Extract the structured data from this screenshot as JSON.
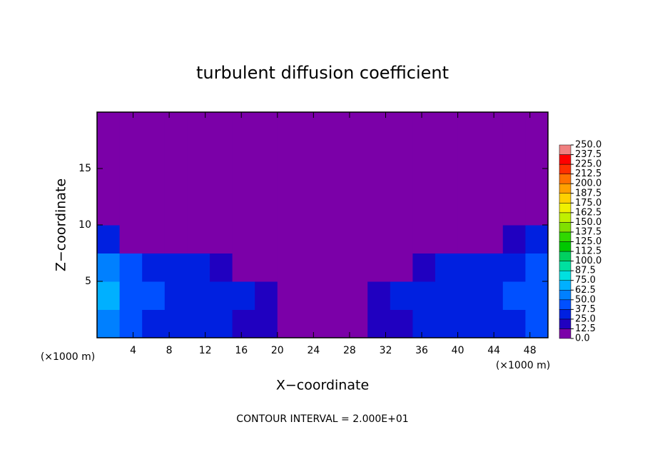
{
  "chart_data": {
    "type": "heatmap",
    "title": "turbulent diffusion coefficient",
    "xlabel": "X−coordinate",
    "ylabel": "Z−coordinate",
    "x_unit_left": "(×1000 m)",
    "x_unit_right": "(×1000 m)",
    "annotation": "CONTOUR INTERVAL = 2.000E+01",
    "xlim": [
      0,
      50
    ],
    "ylim": [
      0,
      20
    ],
    "xticks": [
      4,
      8,
      12,
      16,
      20,
      24,
      28,
      32,
      36,
      40,
      44,
      48
    ],
    "yticks": [
      5,
      10,
      15
    ],
    "z": [
      [
        50,
        40,
        35,
        30,
        30,
        25,
        20,
        15,
        10,
        5,
        5,
        10,
        15,
        20,
        25,
        30,
        35,
        30,
        35,
        40
      ],
      [
        70,
        45,
        40,
        35,
        30,
        30,
        25,
        15,
        10,
        5,
        5,
        10,
        15,
        25,
        30,
        30,
        35,
        35,
        40,
        45
      ],
      [
        60,
        40,
        35,
        30,
        25,
        20,
        10,
        5,
        0,
        0,
        0,
        0,
        5,
        10,
        20,
        30,
        35,
        35,
        35,
        40
      ],
      [
        30,
        10,
        5,
        0,
        0,
        0,
        0,
        0,
        0,
        0,
        0,
        0,
        0,
        0,
        0,
        0,
        5,
        10,
        20,
        25
      ],
      [
        0,
        0,
        0,
        0,
        0,
        0,
        0,
        0,
        0,
        0,
        0,
        0,
        0,
        0,
        0,
        0,
        0,
        0,
        0,
        0
      ],
      [
        0,
        0,
        0,
        0,
        0,
        0,
        0,
        0,
        0,
        0,
        0,
        0,
        0,
        0,
        0,
        0,
        0,
        0,
        0,
        0
      ],
      [
        0,
        0,
        0,
        0,
        0,
        0,
        0,
        0,
        0,
        0,
        0,
        0,
        0,
        0,
        0,
        0,
        0,
        0,
        0,
        0
      ],
      [
        0,
        0,
        0,
        0,
        0,
        0,
        0,
        0,
        0,
        0,
        0,
        0,
        0,
        0,
        0,
        0,
        0,
        0,
        0,
        0
      ]
    ],
    "levels": [
      {
        "value": 0,
        "label": "0.0"
      },
      {
        "value": 12.5,
        "label": "12.5"
      },
      {
        "value": 25,
        "label": "25.0"
      },
      {
        "value": 37.5,
        "label": "37.5"
      },
      {
        "value": 50,
        "label": "50.0"
      },
      {
        "value": 62.5,
        "label": "62.5"
      },
      {
        "value": 75,
        "label": "75.0"
      },
      {
        "value": 87.5,
        "label": "87.5"
      },
      {
        "value": 100,
        "label": "100.0"
      },
      {
        "value": 112.5,
        "label": "112.5"
      },
      {
        "value": 125,
        "label": "125.0"
      },
      {
        "value": 137.5,
        "label": "137.5"
      },
      {
        "value": 150,
        "label": "150.0"
      },
      {
        "value": 162.5,
        "label": "162.5"
      },
      {
        "value": 175,
        "label": "175.0"
      },
      {
        "value": 187.5,
        "label": "187.5"
      },
      {
        "value": 200,
        "label": "200.0"
      },
      {
        "value": 212.5,
        "label": "212.5"
      },
      {
        "value": 225,
        "label": "225.0"
      },
      {
        "value": 237.5,
        "label": "237.5"
      },
      {
        "value": 250,
        "label": "250.0"
      }
    ],
    "colors": [
      "#7b00a8",
      "#2000c0",
      "#0020e0",
      "#0050ff",
      "#0080ff",
      "#00b0ff",
      "#00e0e0",
      "#00e0a0",
      "#00d060",
      "#00c800",
      "#30d800",
      "#80e000",
      "#c0f000",
      "#f0f000",
      "#ffd000",
      "#ffa000",
      "#ff7000",
      "#ff3000",
      "#ff0000",
      "#f08080"
    ]
  }
}
